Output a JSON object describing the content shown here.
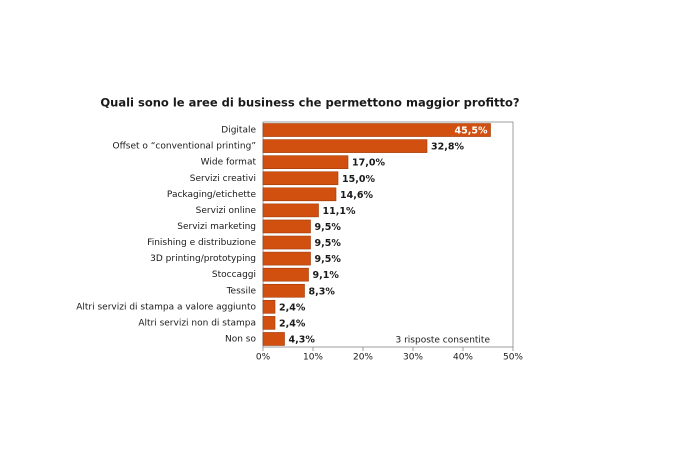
{
  "chart_data": {
    "type": "bar",
    "orientation": "horizontal",
    "title": "Quali sono le aree di business che permettono maggior profitto?",
    "annotation": "3 risposte consentite",
    "categories": [
      "Digitale",
      "Offset o “conventional printing”",
      "Wide format",
      "Servizi creativi",
      "Packaging/etichette",
      "Servizi online",
      "Servizi marketing",
      "Finishing e distribuzione",
      "3D printing/prototyping",
      "Stoccaggi",
      "Tessile",
      "Altri servizi di stampa a valore aggiunto",
      "Altri servizi non di stampa",
      "Non so"
    ],
    "values": [
      45.5,
      32.8,
      17.0,
      15.0,
      14.6,
      11.1,
      9.5,
      9.5,
      9.5,
      9.1,
      8.3,
      2.4,
      2.4,
      4.3
    ],
    "value_labels": [
      "45,5%",
      "32,8%",
      "17,0%",
      "15,0%",
      "14,6%",
      "11,1%",
      "9,5%",
      "9,5%",
      "9,5%",
      "9,1%",
      "8,3%",
      "2,4%",
      "2,4%",
      "4,3%"
    ],
    "color": "#d2500f",
    "xlim": [
      0,
      50
    ],
    "xticks": [
      {
        "value": 0,
        "label": "0%"
      },
      {
        "value": 10,
        "label": "10%"
      },
      {
        "value": 20,
        "label": "20%"
      },
      {
        "value": 30,
        "label": "30%"
      },
      {
        "value": 40,
        "label": "40%"
      },
      {
        "value": 50,
        "label": "50%"
      }
    ]
  }
}
